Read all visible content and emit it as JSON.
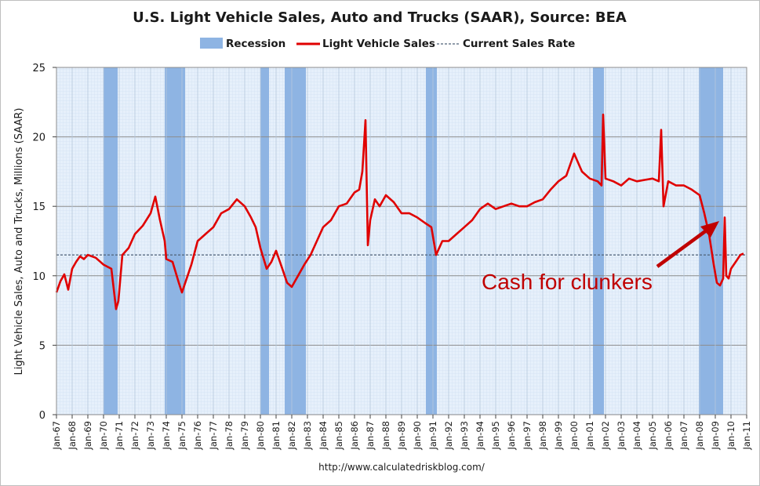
{
  "chart_data": {
    "type": "line",
    "title": "U.S. Light Vehicle Sales, Auto and Trucks (SAAR), Source: BEA",
    "ylabel": "Light Vehicle Sales, Auto and Trucks, Millions (SAAR)",
    "xlabel": "",
    "ylim": [
      0,
      25
    ],
    "yticks": [
      0,
      5,
      10,
      15,
      20,
      25
    ],
    "xlim": [
      1967.0,
      2011.0
    ],
    "x_tick_labels": [
      "Jan-67",
      "Jan-68",
      "Jan-69",
      "Jan-70",
      "Jan-71",
      "Jan-72",
      "Jan-73",
      "Jan-74",
      "Jan-75",
      "Jan-76",
      "Jan-77",
      "Jan-78",
      "Jan-79",
      "Jan-80",
      "Jan-81",
      "Jan-82",
      "Jan-83",
      "Jan-84",
      "Jan-85",
      "Jan-86",
      "Jan-87",
      "Jan-88",
      "Jan-89",
      "Jan-90",
      "Jan-91",
      "Jan-92",
      "Jan-93",
      "Jan-94",
      "Jan-95",
      "Jan-96",
      "Jan-97",
      "Jan-98",
      "Jan-99",
      "Jan-00",
      "Jan-01",
      "Jan-02",
      "Jan-03",
      "Jan-04",
      "Jan-05",
      "Jan-06",
      "Jan-07",
      "Jan-08",
      "Jan-09",
      "Jan-10",
      "Jan-11"
    ],
    "legend": [
      {
        "label": "Recession",
        "color": "#8eb4e3",
        "kind": "bar"
      },
      {
        "label": "Light Vehicle Sales",
        "color": "#e00000",
        "kind": "line"
      },
      {
        "label": "Current Sales Rate",
        "color": "#4f6278",
        "kind": "dashed"
      }
    ],
    "legend_position": "top-center",
    "grid": true,
    "recessions": [
      [
        1970.0,
        1970.9
      ],
      [
        1973.9,
        1975.2
      ],
      [
        1980.0,
        1980.55
      ],
      [
        1981.55,
        1982.9
      ],
      [
        1990.55,
        1991.25
      ],
      [
        2001.2,
        2001.9
      ],
      [
        2007.95,
        2009.5
      ]
    ],
    "current_sales_rate": 11.5,
    "series": [
      {
        "name": "Light Vehicle Sales",
        "color": "#e00000",
        "x": [
          1967.0,
          1967.25,
          1967.5,
          1967.75,
          1968.0,
          1968.25,
          1968.5,
          1968.75,
          1969.0,
          1969.5,
          1970.0,
          1970.5,
          1970.8,
          1970.95,
          1971.2,
          1971.6,
          1972.0,
          1972.5,
          1973.0,
          1973.3,
          1973.6,
          1973.9,
          1974.0,
          1974.4,
          1974.8,
          1975.0,
          1975.3,
          1975.6,
          1976.0,
          1976.5,
          1977.0,
          1977.5,
          1978.0,
          1978.5,
          1979.0,
          1979.4,
          1979.7,
          1980.0,
          1980.4,
          1980.7,
          1981.0,
          1981.4,
          1981.7,
          1982.0,
          1982.4,
          1982.8,
          1983.2,
          1983.6,
          1984.0,
          1984.5,
          1985.0,
          1985.5,
          1986.0,
          1986.3,
          1986.5,
          1986.7,
          1986.85,
          1987.0,
          1987.3,
          1987.6,
          1988.0,
          1988.5,
          1989.0,
          1989.5,
          1990.0,
          1990.5,
          1990.9,
          1991.2,
          1991.6,
          1992.0,
          1992.5,
          1993.0,
          1993.5,
          1994.0,
          1994.5,
          1995.0,
          1995.5,
          1996.0,
          1996.5,
          1997.0,
          1997.5,
          1998.0,
          1998.5,
          1999.0,
          1999.5,
          2000.0,
          2000.5,
          2001.0,
          2001.5,
          2001.75,
          2001.85,
          2002.0,
          2002.5,
          2003.0,
          2003.5,
          2004.0,
          2004.5,
          2005.0,
          2005.4,
          2005.55,
          2005.7,
          2006.0,
          2006.5,
          2007.0,
          2007.5,
          2008.0,
          2008.3,
          2008.6,
          2008.9,
          2009.1,
          2009.3,
          2009.5,
          2009.6,
          2009.7,
          2009.85,
          2010.0,
          2010.3,
          2010.6,
          2010.8
        ],
        "values": [
          8.8,
          9.6,
          10.1,
          9.0,
          10.5,
          11.0,
          11.4,
          11.2,
          11.5,
          11.3,
          10.8,
          10.5,
          7.6,
          8.2,
          11.5,
          12.0,
          13.0,
          13.6,
          14.5,
          15.7,
          14.0,
          12.5,
          11.2,
          11.0,
          9.5,
          8.8,
          9.8,
          10.8,
          12.5,
          13.0,
          13.5,
          14.5,
          14.8,
          15.5,
          15.0,
          14.2,
          13.5,
          12.0,
          10.5,
          11.0,
          11.8,
          10.5,
          9.5,
          9.2,
          10.0,
          10.8,
          11.5,
          12.5,
          13.5,
          14.0,
          15.0,
          15.2,
          16.0,
          16.2,
          17.5,
          21.2,
          12.2,
          14.0,
          15.5,
          15.0,
          15.8,
          15.3,
          14.5,
          14.5,
          14.2,
          13.8,
          13.5,
          11.5,
          12.5,
          12.5,
          13.0,
          13.5,
          14.0,
          14.8,
          15.2,
          14.8,
          15.0,
          15.2,
          15.0,
          15.0,
          15.3,
          15.5,
          16.2,
          16.8,
          17.2,
          18.8,
          17.5,
          17.0,
          16.8,
          16.5,
          21.6,
          17.0,
          16.8,
          16.5,
          17.0,
          16.8,
          16.9,
          17.0,
          16.8,
          20.5,
          15.0,
          16.8,
          16.5,
          16.5,
          16.2,
          15.8,
          14.5,
          13.0,
          10.8,
          9.5,
          9.3,
          9.8,
          14.2,
          10.0,
          9.8,
          10.5,
          11.0,
          11.5,
          11.6
        ]
      }
    ],
    "annotation": "Cash for clunkers",
    "source": "http://www.calculatedriskblog.com/"
  }
}
